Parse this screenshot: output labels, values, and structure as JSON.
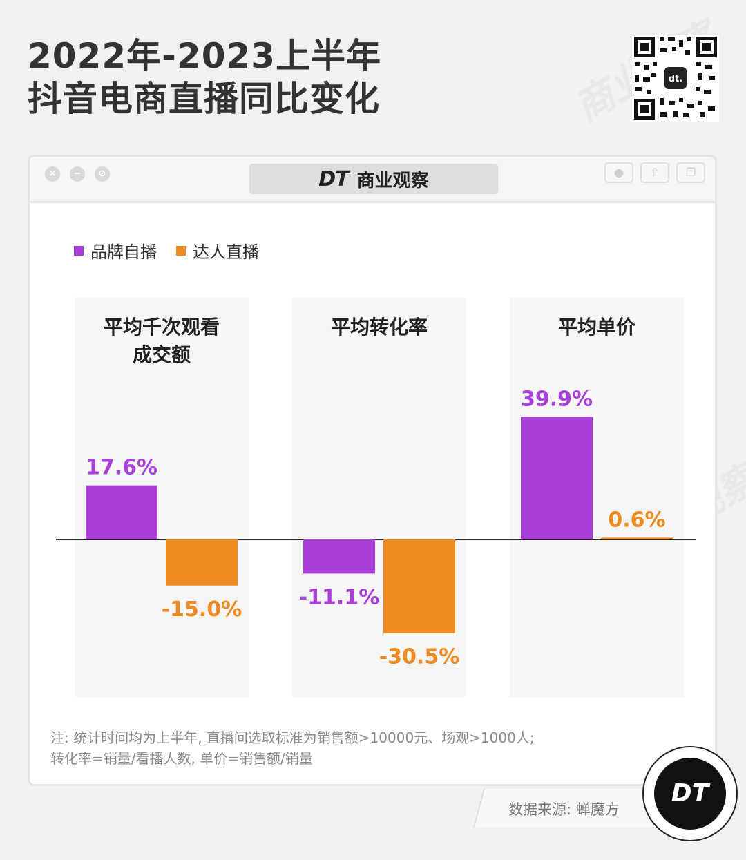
{
  "title_lines": [
    "2022年-2023上半年",
    "抖音电商直播同比变化"
  ],
  "brand": {
    "logo_text": "DT",
    "name": "商业观察"
  },
  "legend": [
    {
      "name": "品牌自播",
      "color": "#a83fd8"
    },
    {
      "name": "达人直播",
      "color": "#ee8a20"
    }
  ],
  "chart_data": {
    "type": "bar",
    "panels": [
      {
        "label_lines": [
          "平均千次观看",
          "成交额"
        ],
        "values": [
          17.6,
          -15.0
        ],
        "labels": [
          "17.6%",
          "-15.0%"
        ]
      },
      {
        "label_lines": [
          "平均转化率"
        ],
        "values": [
          -11.1,
          -30.5
        ],
        "labels": [
          "-11.1%",
          "-30.5%"
        ]
      },
      {
        "label_lines": [
          "平均单价"
        ],
        "values": [
          39.9,
          0.6
        ],
        "labels": [
          "39.9%",
          "0.6%"
        ]
      }
    ],
    "series": [
      {
        "name": "品牌自播",
        "color": "#a83fd8"
      },
      {
        "name": "达人直播",
        "color": "#ee8a20"
      }
    ],
    "unit": "%",
    "grid": false,
    "legend_position": "top-left"
  },
  "note_lines": [
    "注: 统计时间均为上半年, 直播间选取标准为销售额>10000元、场观>1000人;",
    "转化率=销量/看播人数, 单价=销售额/销量"
  ],
  "source": "数据来源: 蝉魔方",
  "icons": [
    "qr-code-icon",
    "window-close-icon",
    "window-minimize-icon",
    "window-maximize-icon",
    "record-icon",
    "share-icon",
    "copy-icon",
    "dt-badge-icon"
  ]
}
